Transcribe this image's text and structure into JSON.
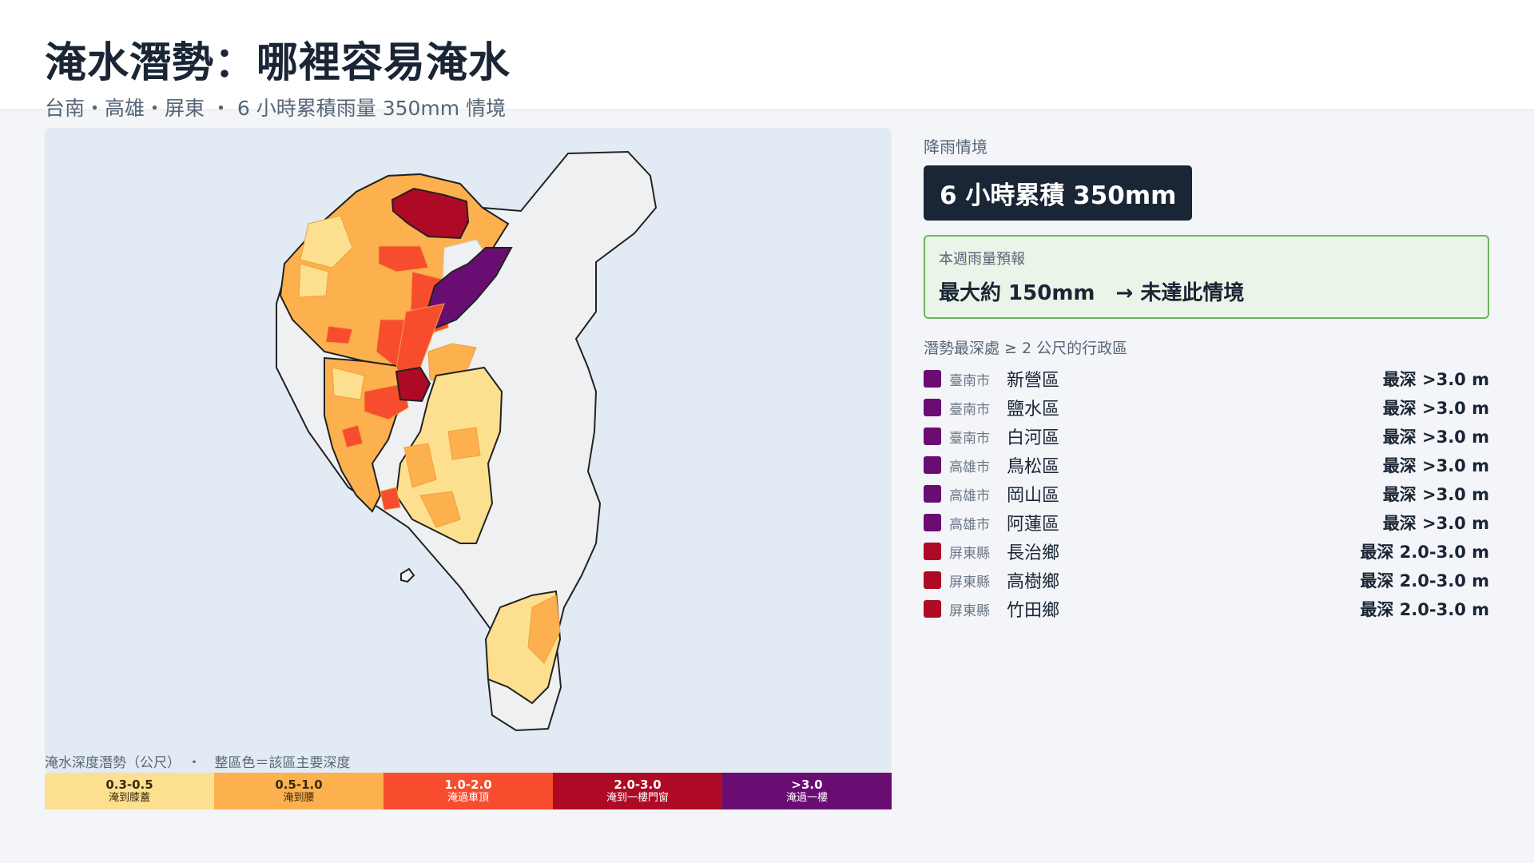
{
  "header": {
    "title": "淹水潛勢：哪裡容易淹水",
    "subtitle": "台南・高雄・屏東 ・ 6 小時累積雨量 350mm 情境"
  },
  "scenario": {
    "label": "降雨情境",
    "value": "6 小時累積 350mm"
  },
  "forecast": {
    "label": "本週雨量預報",
    "text": "最大約 150mm　→ 未達此情境",
    "border_color": "#6bb65c",
    "bg_color": "#eaf4e8"
  },
  "list": {
    "heading": "潛勢最深處 ≥ 2 公尺的行政區",
    "items": [
      {
        "county": "臺南市",
        "district": "新營區",
        "depth": "最深 >3.0 m",
        "color": "#6a0d73"
      },
      {
        "county": "臺南市",
        "district": "鹽水區",
        "depth": "最深 >3.0 m",
        "color": "#6a0d73"
      },
      {
        "county": "臺南市",
        "district": "白河區",
        "depth": "最深 >3.0 m",
        "color": "#6a0d73"
      },
      {
        "county": "高雄市",
        "district": "鳥松區",
        "depth": "最深 >3.0 m",
        "color": "#6a0d73"
      },
      {
        "county": "高雄市",
        "district": "岡山區",
        "depth": "最深 >3.0 m",
        "color": "#6a0d73"
      },
      {
        "county": "高雄市",
        "district": "阿蓮區",
        "depth": "最深 >3.0 m",
        "color": "#6a0d73"
      },
      {
        "county": "屏東縣",
        "district": "長治鄉",
        "depth": "最深 2.0-3.0 m",
        "color": "#ae0a25"
      },
      {
        "county": "屏東縣",
        "district": "高樹鄉",
        "depth": "最深 2.0-3.0 m",
        "color": "#ae0a25"
      },
      {
        "county": "屏東縣",
        "district": "竹田鄉",
        "depth": "最深 2.0-3.0 m",
        "color": "#ae0a25"
      }
    ]
  },
  "legend": {
    "caption": "淹水深度潛勢（公尺）　・　整區色＝該區主要深度",
    "items": [
      {
        "range": "0.3-0.5",
        "desc": "淹到膝蓋",
        "color": "#fde08f",
        "text_color": "#3a2a10"
      },
      {
        "range": "0.5-1.0",
        "desc": "淹到腰",
        "color": "#fdb04e",
        "text_color": "#3a2a10"
      },
      {
        "range": "1.0-2.0",
        "desc": "淹過車頂",
        "color": "#f84c2e",
        "text_color": "#ffffff"
      },
      {
        "range": "2.0-3.0",
        "desc": "淹到一樓門窗",
        "color": "#ae0a25",
        "text_color": "#ffffff"
      },
      {
        "range": ">3.0",
        "desc": "淹過一樓",
        "color": "#6a0d73",
        "text_color": "#ffffff"
      }
    ]
  },
  "map": {
    "water_color": "#e2ebf4",
    "land_no_data_color": "#eef0f2",
    "boundary_color": "#222222"
  }
}
